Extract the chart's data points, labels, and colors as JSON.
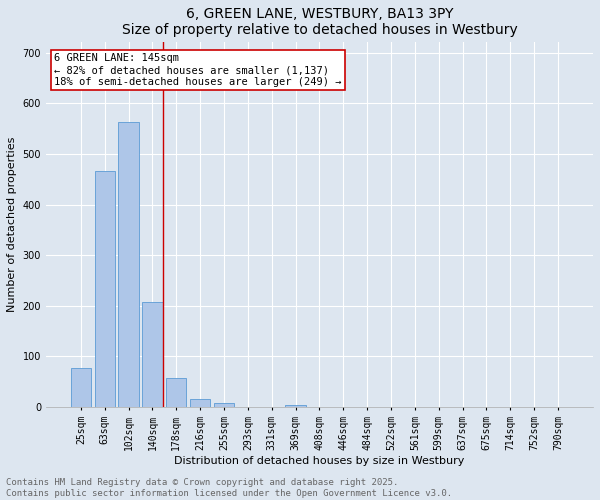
{
  "title": "6, GREEN LANE, WESTBURY, BA13 3PY",
  "subtitle": "Size of property relative to detached houses in Westbury",
  "xlabel": "Distribution of detached houses by size in Westbury",
  "ylabel": "Number of detached properties",
  "categories": [
    "25sqm",
    "63sqm",
    "102sqm",
    "140sqm",
    "178sqm",
    "216sqm",
    "255sqm",
    "293sqm",
    "331sqm",
    "369sqm",
    "408sqm",
    "446sqm",
    "484sqm",
    "522sqm",
    "561sqm",
    "599sqm",
    "637sqm",
    "675sqm",
    "714sqm",
    "752sqm",
    "790sqm"
  ],
  "values": [
    78,
    467,
    563,
    208,
    57,
    16,
    8,
    0,
    0,
    5,
    0,
    0,
    0,
    0,
    0,
    0,
    0,
    0,
    0,
    0,
    0
  ],
  "bar_color": "#aec6e8",
  "bar_edge_color": "#5b9bd5",
  "vline_x_index": 3,
  "vline_color": "#cc0000",
  "annotation_text": "6 GREEN LANE: 145sqm\n← 82% of detached houses are smaller (1,137)\n18% of semi-detached houses are larger (249) →",
  "annotation_box_color": "#ffffff",
  "annotation_box_edge": "#cc0000",
  "ylim": [
    0,
    720
  ],
  "yticks": [
    0,
    100,
    200,
    300,
    400,
    500,
    600,
    700
  ],
  "background_color": "#dde6f0",
  "footer_text": "Contains HM Land Registry data © Crown copyright and database right 2025.\nContains public sector information licensed under the Open Government Licence v3.0.",
  "title_fontsize": 10,
  "axis_label_fontsize": 8,
  "tick_fontsize": 7,
  "annotation_fontsize": 7.5,
  "footer_fontsize": 6.5
}
